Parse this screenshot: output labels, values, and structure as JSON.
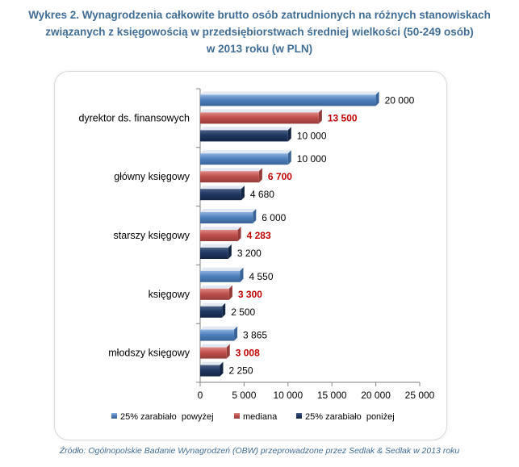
{
  "title_lines": [
    "Wykres 2. Wynagrodzenia całkowite brutto osób zatrudnionych na różnych stanowiskach",
    "związanych z księgowością w przedsiębiorstwach średniej wielkości (50-249 osób)",
    "w 2013 roku (w PLN)"
  ],
  "source": "Źródło: Ogólnopolskie Badanie Wynagrodzeń (OBW) przeprowadzone przez Sedlak & Sedlak w 2013 roku",
  "colors": {
    "title": "#3f6d96",
    "series_top": "#4f81bd",
    "series_median": "#c0504d",
    "series_bottom": "#1f3864",
    "median_label": "#c00000",
    "axis": "#808080"
  },
  "chart_data": {
    "type": "bar",
    "orientation": "horizontal",
    "categories": [
      "dyrektor ds. finansowych",
      "główny księgowy",
      "starszy księgowy",
      "księgowy",
      "młodszy księgowy"
    ],
    "series": [
      {
        "name": "25% zarabiało  powyżej",
        "values": [
          20000,
          10000,
          6000,
          4550,
          3865
        ],
        "labels": [
          "20 000",
          "10 000",
          "6 000",
          "4 550",
          "3 865"
        ]
      },
      {
        "name": "mediana",
        "values": [
          13500,
          6700,
          4283,
          3300,
          3008
        ],
        "labels": [
          "13 500",
          "6 700",
          "4 283",
          "3 300",
          "3 008"
        ]
      },
      {
        "name": "25% zarabiało  poniżej",
        "values": [
          10000,
          4680,
          3200,
          2500,
          2250
        ],
        "labels": [
          "10 000",
          "4 680",
          "3 200",
          "2 500",
          "2 250"
        ]
      }
    ],
    "xlim": [
      0,
      25000
    ],
    "xticks": [
      0,
      5000,
      10000,
      15000,
      20000,
      25000
    ],
    "xtick_labels": [
      "0",
      "5 000",
      "10 000",
      "15 000",
      "20 000",
      "25 000"
    ],
    "grid": false,
    "legend_position": "bottom"
  }
}
